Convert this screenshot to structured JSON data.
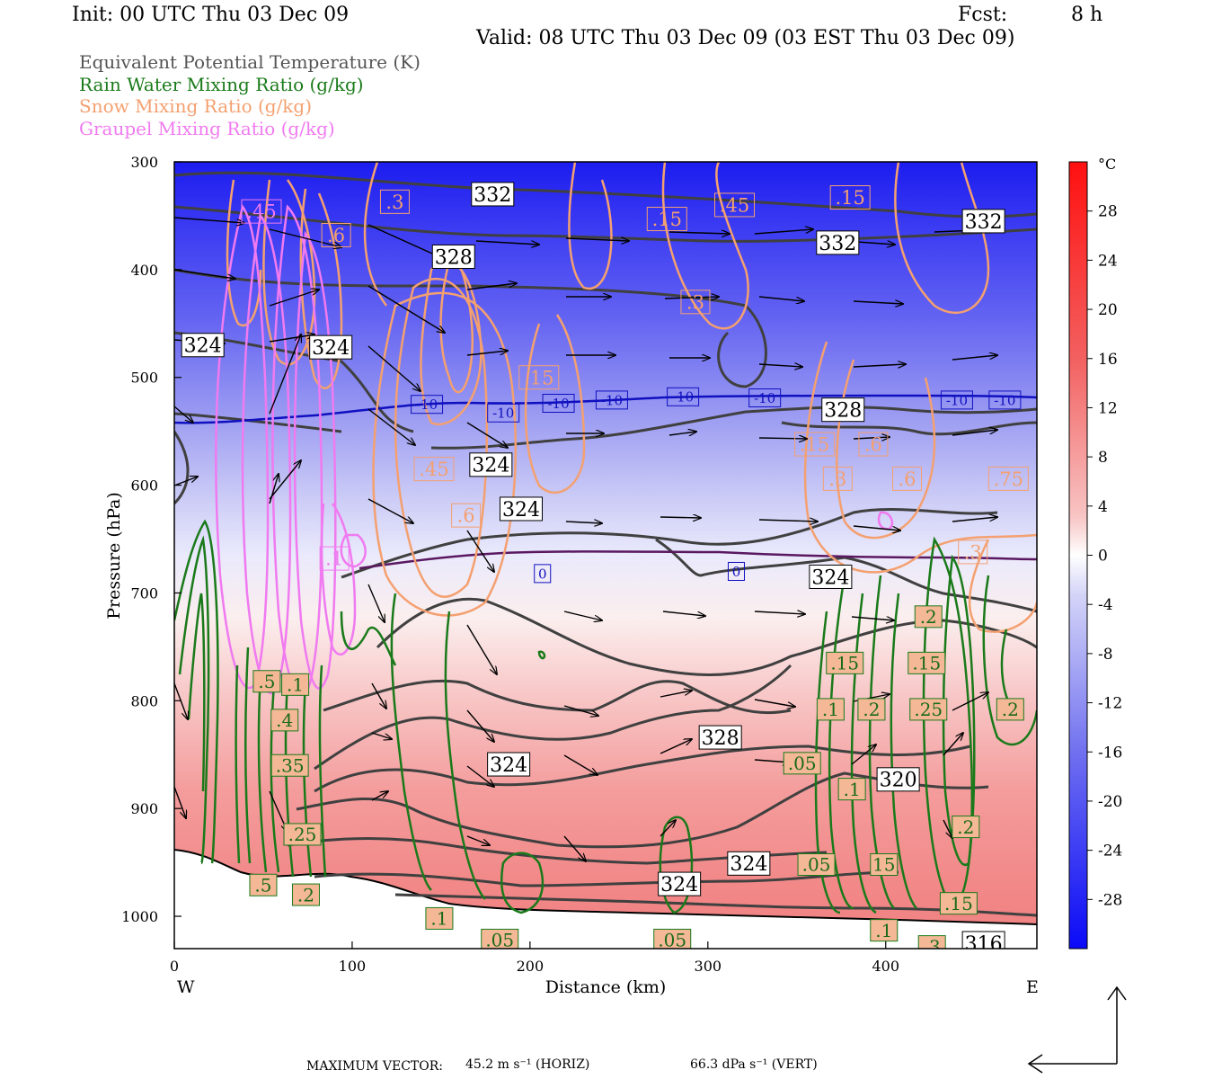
{
  "header": {
    "init": "Init: 00 UTC Thu 03 Dec 09",
    "fcst_label": "Fcst:",
    "fcst_value": "8 h",
    "valid": "Valid: 08 UTC Thu 03 Dec 09 (03 EST Thu 03 Dec 09)"
  },
  "legend": [
    {
      "label": "Equivalent Potential Temperature (K)",
      "color": "#555555"
    },
    {
      "label": "Rain Water Mixing Ratio (g/kg)",
      "color": "#1a7a1a"
    },
    {
      "label": "Snow Mixing Ratio (g/kg)",
      "color": "#f4a070"
    },
    {
      "label": "Graupel Mixing Ratio (g/kg)",
      "color": "#f07af0"
    }
  ],
  "chart_data": {
    "type": "cross-section",
    "xlabel": "Distance (km)",
    "ylabel": "Pressure (hPa)",
    "x_ticks": [
      0,
      100,
      200,
      300,
      400
    ],
    "y_ticks": [
      300,
      400,
      500,
      600,
      700,
      800,
      900,
      1000
    ],
    "xlim": [
      0,
      485
    ],
    "ylim": [
      1030,
      300
    ],
    "west_label": "W",
    "east_label": "E",
    "colorbar": {
      "unit": "°C",
      "ticks": [
        28,
        24,
        20,
        16,
        12,
        8,
        4,
        0,
        -4,
        -8,
        -12,
        -16,
        -20,
        -24,
        -28
      ],
      "range": [
        32,
        -32
      ]
    },
    "theta_e_labels": [
      {
        "text": "332",
        "x": 179,
        "p": 330
      },
      {
        "text": "332",
        "x": 455,
        "p": 355
      },
      {
        "text": "332",
        "x": 373,
        "p": 375
      },
      {
        "text": "328",
        "x": 157,
        "p": 388
      },
      {
        "text": "324",
        "x": 16,
        "p": 470
      },
      {
        "text": "324",
        "x": 88,
        "p": 472
      },
      {
        "text": "328",
        "x": 376,
        "p": 530
      },
      {
        "text": "324",
        "x": 178,
        "p": 581
      },
      {
        "text": "324",
        "x": 195,
        "p": 622
      },
      {
        "text": "324",
        "x": 369,
        "p": 685
      },
      {
        "text": "328",
        "x": 307,
        "p": 834
      },
      {
        "text": "324",
        "x": 188,
        "p": 859
      },
      {
        "text": "320",
        "x": 407,
        "p": 873
      },
      {
        "text": "324",
        "x": 323,
        "p": 951
      },
      {
        "text": "324",
        "x": 284,
        "p": 970
      },
      {
        "text": "316",
        "x": 455,
        "p": 1025
      }
    ],
    "temperature_labels": [
      {
        "text": "-10",
        "x": 142,
        "p": 525
      },
      {
        "text": "-10",
        "x": 185,
        "p": 533
      },
      {
        "text": "-10",
        "x": 216,
        "p": 524
      },
      {
        "text": "-10",
        "x": 246,
        "p": 521
      },
      {
        "text": "-10",
        "x": 286,
        "p": 518
      },
      {
        "text": "-10",
        "x": 332,
        "p": 519
      },
      {
        "text": "-10",
        "x": 440,
        "p": 521
      },
      {
        "text": "-10",
        "x": 467,
        "p": 521
      },
      {
        "text": "0",
        "x": 207,
        "p": 682
      },
      {
        "text": "0",
        "x": 316,
        "p": 680
      }
    ],
    "snow_labels": [
      {
        "text": ".3",
        "x": 124,
        "p": 337
      },
      {
        "text": ".15",
        "x": 277,
        "p": 353
      },
      {
        "text": ".45",
        "x": 315,
        "p": 340
      },
      {
        "text": ".15",
        "x": 380,
        "p": 333
      },
      {
        "text": ".6",
        "x": 91,
        "p": 368
      },
      {
        "text": ".3",
        "x": 293,
        "p": 430
      },
      {
        "text": ".15",
        "x": 205,
        "p": 500
      },
      {
        "text": ".45",
        "x": 146,
        "p": 585
      },
      {
        "text": ".6",
        "x": 164,
        "p": 628
      },
      {
        "text": ".15",
        "x": 360,
        "p": 562
      },
      {
        "text": ".6",
        "x": 393,
        "p": 562
      },
      {
        "text": ".3",
        "x": 373,
        "p": 594
      },
      {
        "text": ".6",
        "x": 412,
        "p": 594
      },
      {
        "text": ".75",
        "x": 469,
        "p": 594
      },
      {
        "text": ".3",
        "x": 449,
        "p": 662
      }
    ],
    "rain_labels": [
      {
        "text": ".2",
        "x": 424,
        "p": 722
      },
      {
        "text": ".15",
        "x": 377,
        "p": 765
      },
      {
        "text": ".15",
        "x": 423,
        "p": 765
      },
      {
        "text": ".1",
        "x": 369,
        "p": 808
      },
      {
        "text": ".2",
        "x": 392,
        "p": 808
      },
      {
        "text": ".25",
        "x": 424,
        "p": 808
      },
      {
        "text": ".2",
        "x": 470,
        "p": 808
      },
      {
        "text": ".05",
        "x": 353,
        "p": 858
      },
      {
        "text": ".1",
        "x": 381,
        "p": 882
      },
      {
        "text": ".2",
        "x": 445,
        "p": 917
      },
      {
        "text": ".05",
        "x": 361,
        "p": 952
      },
      {
        "text": "15",
        "x": 399,
        "p": 952
      },
      {
        "text": ".15",
        "x": 441,
        "p": 988
      },
      {
        "text": ".1",
        "x": 399,
        "p": 1013
      },
      {
        "text": ".3",
        "x": 426,
        "p": 1028
      },
      {
        "text": ".05",
        "x": 183,
        "p": 1022
      },
      {
        "text": ".05",
        "x": 280,
        "p": 1022
      },
      {
        "text": ".1",
        "x": 149,
        "p": 1002
      },
      {
        "text": ".5",
        "x": 50,
        "p": 971
      },
      {
        "text": ".2",
        "x": 74,
        "p": 980
      },
      {
        "text": ".25",
        "x": 72,
        "p": 924
      },
      {
        "text": ".35",
        "x": 65,
        "p": 860
      },
      {
        "text": ".4",
        "x": 62,
        "p": 818
      },
      {
        "text": ".5",
        "x": 52,
        "p": 782
      },
      {
        "text": ".1",
        "x": 68,
        "p": 785
      }
    ],
    "graupel_labels": [
      {
        "text": ".45",
        "x": 49,
        "p": 346
      },
      {
        "text": ".1",
        "x": 90,
        "p": 668
      }
    ],
    "max_vector": {
      "label": "MAXIMUM VECTOR:",
      "horiz": "45.2 m s⁻¹ (HORIZ)",
      "vert": "66.3 dPa s⁻¹ (VERT)"
    }
  }
}
